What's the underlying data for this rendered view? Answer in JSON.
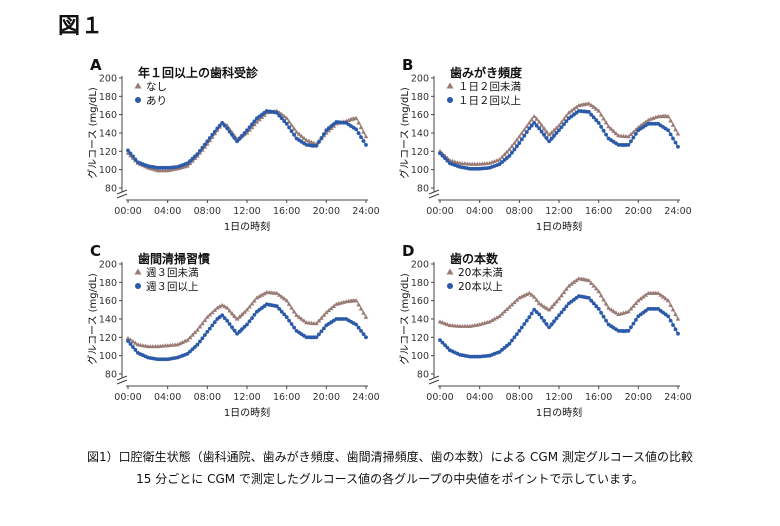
{
  "figure_title": "図１",
  "caption": {
    "line1": "図1）口腔衛生状態（歯科通院、歯みがき頻度、歯間清掃頻度、歯の本数）による CGM 測定グルコース値の比較",
    "line2": "15 分ごとに CGM で測定したグルコース値の各グループの中央値をポイントで示しています。"
  },
  "colors": {
    "group_a": "#9a7a75",
    "group_b": "#2b5aa8",
    "text": "#111111",
    "axis": "#444444"
  },
  "chart_data": [
    {
      "type": "scatter",
      "panel_label": "A",
      "title": "年１回以上の歯科受診",
      "xlabel": "1日の時刻",
      "ylabel": "グルコース (mg/dL)",
      "xticks": [
        "00:00",
        "04:00",
        "08:00",
        "12:00",
        "16:00",
        "20:00",
        "24:00"
      ],
      "yticks": [
        "80",
        "100",
        "120",
        "140",
        "160",
        "180",
        "200"
      ],
      "xlim": [
        0,
        24
      ],
      "ylim": [
        80,
        200
      ],
      "series": [
        {
          "name": "なし",
          "marker": "triangle",
          "color": "#9a7a75",
          "points": [
            [
              0,
              118
            ],
            [
              1,
              107
            ],
            [
              2,
              102
            ],
            [
              3,
              99
            ],
            [
              4,
              99
            ],
            [
              5,
              101
            ],
            [
              6,
              104
            ],
            [
              7,
              115
            ],
            [
              8,
              128
            ],
            [
              9,
              143
            ],
            [
              9.5,
              150
            ],
            [
              10,
              148
            ],
            [
              11,
              133
            ],
            [
              12,
              140
            ],
            [
              13,
              152
            ],
            [
              14,
              162
            ],
            [
              15,
              164
            ],
            [
              16,
              156
            ],
            [
              17,
              141
            ],
            [
              18,
              132
            ],
            [
              19,
              128
            ],
            [
              20,
              140
            ],
            [
              21,
              150
            ],
            [
              22,
              153
            ],
            [
              23,
              156
            ],
            [
              24,
              136
            ]
          ]
        },
        {
          "name": "あり",
          "marker": "circle",
          "color": "#2b5aa8",
          "points": [
            [
              0,
              121
            ],
            [
              1,
              108
            ],
            [
              2,
              104
            ],
            [
              3,
              102
            ],
            [
              4,
              102
            ],
            [
              5,
              103
            ],
            [
              6,
              107
            ],
            [
              7,
              117
            ],
            [
              8,
              131
            ],
            [
              9,
              145
            ],
            [
              9.5,
              151
            ],
            [
              10,
              145
            ],
            [
              11,
              131
            ],
            [
              12,
              143
            ],
            [
              13,
              156
            ],
            [
              14,
              164
            ],
            [
              15,
              162
            ],
            [
              16,
              150
            ],
            [
              17,
              134
            ],
            [
              18,
              127
            ],
            [
              19,
              126
            ],
            [
              20,
              143
            ],
            [
              21,
              152
            ],
            [
              22,
              151
            ],
            [
              23,
              144
            ],
            [
              24,
              127
            ]
          ]
        }
      ]
    },
    {
      "type": "scatter",
      "panel_label": "B",
      "title": "歯みがき頻度",
      "xlabel": "1日の時刻",
      "ylabel": "グルコース (mg/dL)",
      "xticks": [
        "00:00",
        "04:00",
        "08:00",
        "12:00",
        "16:00",
        "20:00",
        "24:00"
      ],
      "yticks": [
        "80",
        "100",
        "120",
        "140",
        "160",
        "180",
        "200"
      ],
      "xlim": [
        0,
        24
      ],
      "ylim": [
        80,
        200
      ],
      "series": [
        {
          "name": "１日２回未満",
          "marker": "triangle",
          "color": "#9a7a75",
          "points": [
            [
              0,
              120
            ],
            [
              1,
              110
            ],
            [
              2,
              107
            ],
            [
              3,
              106
            ],
            [
              4,
              106
            ],
            [
              5,
              107
            ],
            [
              6,
              111
            ],
            [
              7,
              122
            ],
            [
              8,
              136
            ],
            [
              9,
              151
            ],
            [
              9.5,
              158
            ],
            [
              10,
              152
            ],
            [
              11,
              138
            ],
            [
              12,
              148
            ],
            [
              13,
              162
            ],
            [
              14,
              170
            ],
            [
              15,
              172
            ],
            [
              16,
              164
            ],
            [
              17,
              147
            ],
            [
              18,
              137
            ],
            [
              19,
              136
            ],
            [
              20,
              146
            ],
            [
              21,
              154
            ],
            [
              22,
              158
            ],
            [
              23,
              158
            ],
            [
              24,
              139
            ]
          ]
        },
        {
          "name": "１日２回以上",
          "marker": "circle",
          "color": "#2b5aa8",
          "points": [
            [
              0,
              118
            ],
            [
              1,
              107
            ],
            [
              2,
              103
            ],
            [
              3,
              101
            ],
            [
              4,
              101
            ],
            [
              5,
              102
            ],
            [
              6,
              106
            ],
            [
              7,
              115
            ],
            [
              8,
              129
            ],
            [
              9,
              145
            ],
            [
              9.5,
              151
            ],
            [
              10,
              145
            ],
            [
              11,
              131
            ],
            [
              12,
              143
            ],
            [
              13,
              156
            ],
            [
              14,
              164
            ],
            [
              15,
              163
            ],
            [
              16,
              151
            ],
            [
              17,
              134
            ],
            [
              18,
              127
            ],
            [
              19,
              127
            ],
            [
              20,
              143
            ],
            [
              21,
              150
            ],
            [
              22,
              150
            ],
            [
              23,
              143
            ],
            [
              24,
              125
            ]
          ]
        }
      ]
    },
    {
      "type": "scatter",
      "panel_label": "C",
      "title": "歯間清掃習慣",
      "xlabel": "1日の時刻",
      "ylabel": "グルコース (mg/dL)",
      "xticks": [
        "00:00",
        "04:00",
        "08:00",
        "12:00",
        "16:00",
        "20:00",
        "24:00"
      ],
      "yticks": [
        "80",
        "100",
        "120",
        "140",
        "160",
        "180",
        "200"
      ],
      "xlim": [
        0,
        24
      ],
      "ylim": [
        80,
        200
      ],
      "series": [
        {
          "name": "週３回未満",
          "marker": "triangle",
          "color": "#9a7a75",
          "points": [
            [
              0,
              119
            ],
            [
              1,
              112
            ],
            [
              2,
              110
            ],
            [
              3,
              110
            ],
            [
              4,
              111
            ],
            [
              5,
              112
            ],
            [
              6,
              117
            ],
            [
              7,
              128
            ],
            [
              8,
              142
            ],
            [
              9,
              152
            ],
            [
              9.5,
              155
            ],
            [
              10,
              152
            ],
            [
              11,
              140
            ],
            [
              12,
              150
            ],
            [
              13,
              163
            ],
            [
              14,
              169
            ],
            [
              15,
              168
            ],
            [
              16,
              160
            ],
            [
              17,
              144
            ],
            [
              18,
              136
            ],
            [
              19,
              135
            ],
            [
              20,
              147
            ],
            [
              21,
              156
            ],
            [
              22,
              159
            ],
            [
              23,
              160
            ],
            [
              24,
              142
            ]
          ]
        },
        {
          "name": "週３回以上",
          "marker": "circle",
          "color": "#2b5aa8",
          "points": [
            [
              0,
              116
            ],
            [
              1,
              103
            ],
            [
              2,
              98
            ],
            [
              3,
              96
            ],
            [
              4,
              96
            ],
            [
              5,
              98
            ],
            [
              6,
              102
            ],
            [
              7,
              112
            ],
            [
              8,
              126
            ],
            [
              9,
              140
            ],
            [
              9.5,
              144
            ],
            [
              10,
              138
            ],
            [
              11,
              124
            ],
            [
              12,
              134
            ],
            [
              13,
              148
            ],
            [
              14,
              156
            ],
            [
              15,
              154
            ],
            [
              16,
              142
            ],
            [
              17,
              127
            ],
            [
              18,
              120
            ],
            [
              19,
              120
            ],
            [
              20,
              133
            ],
            [
              21,
              140
            ],
            [
              22,
              140
            ],
            [
              23,
              134
            ],
            [
              24,
              120
            ]
          ]
        }
      ]
    },
    {
      "type": "scatter",
      "panel_label": "D",
      "title": "歯の本数",
      "xlabel": "1日の時刻",
      "ylabel": "グルコース (mg/dL)",
      "xticks": [
        "00:00",
        "04:00",
        "08:00",
        "12:00",
        "16:00",
        "20:00",
        "24:00"
      ],
      "yticks": [
        "80",
        "100",
        "120",
        "140",
        "160",
        "180",
        "200"
      ],
      "xlim": [
        0,
        24
      ],
      "ylim": [
        80,
        200
      ],
      "series": [
        {
          "name": "20本未満",
          "marker": "triangle",
          "color": "#9a7a75",
          "points": [
            [
              0,
              137
            ],
            [
              1,
              133
            ],
            [
              2,
              132
            ],
            [
              3,
              132
            ],
            [
              4,
              134
            ],
            [
              5,
              137
            ],
            [
              6,
              143
            ],
            [
              7,
              153
            ],
            [
              8,
              163
            ],
            [
              9,
              168
            ],
            [
              9.5,
              164
            ],
            [
              10,
              157
            ],
            [
              11,
              150
            ],
            [
              12,
              162
            ],
            [
              13,
              176
            ],
            [
              14,
              184
            ],
            [
              15,
              182
            ],
            [
              16,
              170
            ],
            [
              17,
              152
            ],
            [
              18,
              145
            ],
            [
              19,
              148
            ],
            [
              20,
              160
            ],
            [
              21,
              168
            ],
            [
              22,
              168
            ],
            [
              23,
              160
            ],
            [
              24,
              140
            ]
          ]
        },
        {
          "name": "20本以上",
          "marker": "circle",
          "color": "#2b5aa8",
          "points": [
            [
              0,
              117
            ],
            [
              1,
              106
            ],
            [
              2,
              101
            ],
            [
              3,
              99
            ],
            [
              4,
              99
            ],
            [
              5,
              100
            ],
            [
              6,
              104
            ],
            [
              7,
              113
            ],
            [
              8,
              127
            ],
            [
              9,
              142
            ],
            [
              9.5,
              150
            ],
            [
              10,
              145
            ],
            [
              11,
              131
            ],
            [
              12,
              144
            ],
            [
              13,
              157
            ],
            [
              14,
              165
            ],
            [
              15,
              163
            ],
            [
              16,
              151
            ],
            [
              17,
              134
            ],
            [
              18,
              127
            ],
            [
              19,
              127
            ],
            [
              20,
              143
            ],
            [
              21,
              151
            ],
            [
              22,
              151
            ],
            [
              23,
              143
            ],
            [
              24,
              124
            ]
          ]
        }
      ]
    }
  ]
}
